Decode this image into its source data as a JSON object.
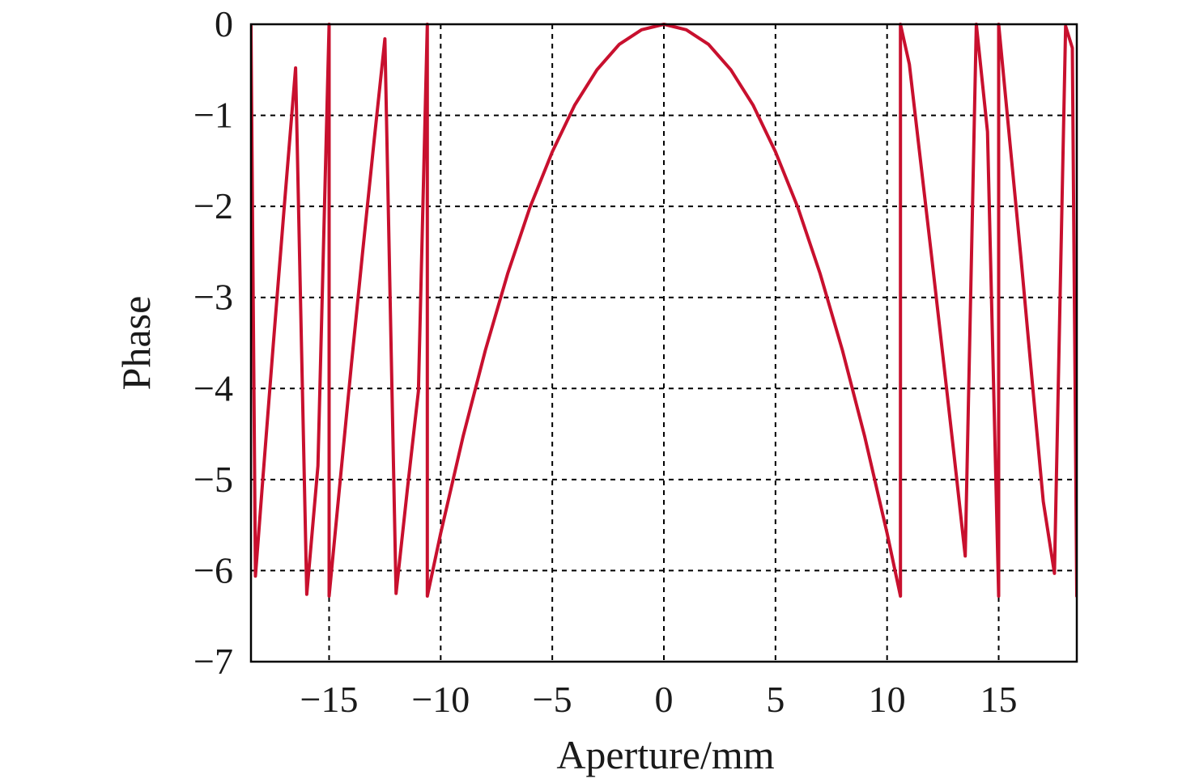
{
  "chart_data": {
    "type": "line",
    "title": "",
    "xlabel": "Aperture/mm",
    "ylabel": "Phase",
    "xlim": [
      -18.5,
      18.5
    ],
    "ylim": [
      -7,
      0
    ],
    "xticks": [
      -15,
      -10,
      -5,
      0,
      5,
      10,
      15
    ],
    "yticks": [
      0,
      -1,
      -2,
      -3,
      -4,
      -5,
      -6,
      -7
    ],
    "xtick_labels": [
      "−15",
      "−10",
      "−5",
      "0",
      "5",
      "10",
      "15"
    ],
    "ytick_labels": [
      "0",
      "−1",
      "−2",
      "−3",
      "−4",
      "−5",
      "−6",
      "−7"
    ],
    "grid": true,
    "legend": "none",
    "series": [
      {
        "color": "#c8102e",
        "description_formula": "wrapped parabolic phase: phi = -x^2 * 2pi / 10.6^2, wrapped into [-2pi, 0]",
        "x": [
          -18.5,
          -18.3,
          -18.0,
          -17.5,
          -17.0,
          -16.5,
          -16.0,
          -15.5,
          -15.0,
          -15.0,
          -14.5,
          -14.0,
          -13.5,
          -13.0,
          -12.5,
          -12.0,
          -11.5,
          -11.0,
          -10.6,
          -10.6,
          -10.0,
          -9.0,
          -8.0,
          -7.0,
          -6.0,
          -5.0,
          -4.0,
          -3.0,
          -2.0,
          -1.0,
          0.0,
          1.0,
          2.0,
          3.0,
          4.0,
          5.0,
          6.0,
          7.0,
          8.0,
          9.0,
          10.0,
          10.6,
          10.6,
          11.0,
          11.5,
          12.0,
          12.5,
          13.0,
          13.5,
          14.0,
          14.5,
          15.0,
          15.0,
          15.5,
          16.0,
          16.5,
          17.0,
          17.5,
          18.0,
          18.3,
          18.5
        ],
        "y": [
          -0.02,
          -6.06,
          -5.09,
          -3.51,
          -1.97,
          -0.48,
          -6.26,
          -4.85,
          -0.0,
          -6.28,
          -5.0,
          -3.73,
          -2.51,
          -1.32,
          -0.16,
          -6.25,
          -5.12,
          -4.03,
          -0.0,
          -6.28,
          -5.59,
          -4.53,
          -3.58,
          -2.74,
          -2.01,
          -1.4,
          -0.89,
          -0.5,
          -0.22,
          -0.06,
          0.0,
          -0.06,
          -0.22,
          -0.5,
          -0.89,
          -1.4,
          -2.01,
          -2.74,
          -3.58,
          -4.53,
          -5.59,
          -6.28,
          0.0,
          -0.44,
          -1.5,
          -2.56,
          -3.64,
          -4.73,
          -5.84,
          -0.0,
          -1.18,
          -6.28,
          0.0,
          -1.29,
          -2.57,
          -3.92,
          -5.24,
          -6.03,
          -0.02,
          -0.26,
          -6.28
        ]
      }
    ]
  }
}
